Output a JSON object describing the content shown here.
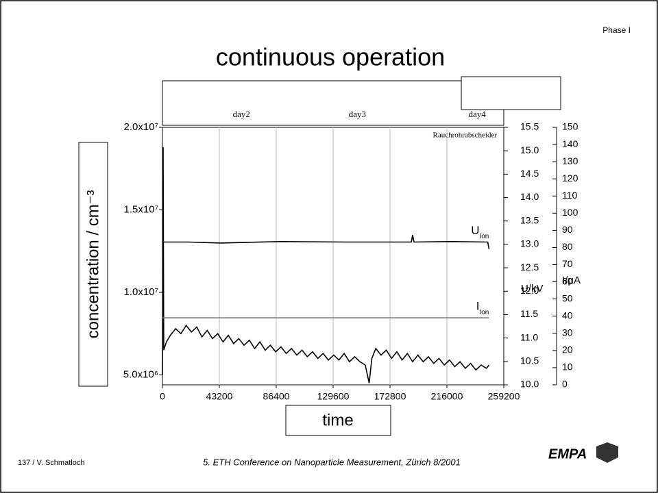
{
  "header": {
    "phase": "Phase I"
  },
  "footer": {
    "author": "137 / V. Schmatloch",
    "conference": "5. ETH Conference on Nanoparticle Measurement, Zürich 8/2001",
    "logo": "EMPA"
  },
  "chart_data": {
    "type": "line",
    "title": "continuous operation",
    "xlabel": "time",
    "ylabel": "concentration / cm⁻³",
    "y2label": "U/kV",
    "y3label": "I/µA",
    "xlim": [
      0,
      259200
    ],
    "xticks": [
      0,
      43200,
      86400,
      129600,
      172800,
      216000,
      259200
    ],
    "grid": true,
    "ylim": [
      4400000,
      20000000
    ],
    "yticks": [
      {
        "value": 5000000,
        "label": "5.0x10⁶"
      },
      {
        "value": 10000000,
        "label": "1.0x10⁷"
      },
      {
        "value": 15000000,
        "label": "1.5x10⁷"
      },
      {
        "value": 20000000,
        "label": "2.0x10⁷"
      }
    ],
    "y2lim": [
      10,
      15.5
    ],
    "y2ticks": [
      {
        "value": 10,
        "label": "10.0"
      },
      10.5,
      {
        "value": 11,
        "label": "11.0"
      },
      11.5,
      {
        "value": 12,
        "label": "12.0"
      },
      12.5,
      {
        "value": 13,
        "label": "13.0"
      },
      13.5,
      {
        "value": 14,
        "label": "14.0"
      },
      14.5,
      {
        "value": 15,
        "label": "15.0"
      },
      15.5
    ],
    "y3lim": [
      0,
      150
    ],
    "y3ticks": [
      0,
      10,
      20,
      30,
      40,
      50,
      60,
      70,
      80,
      90,
      100,
      110,
      120,
      130,
      140,
      150
    ],
    "annotations": [
      {
        "text": "day2",
        "x": 60000
      },
      {
        "text": "day3",
        "x": 148000
      },
      {
        "text": "day4",
        "x": 239000
      },
      {
        "text": "Rauchrohrabscheider",
        "x": 254000,
        "y": 19500000
      }
    ],
    "series": [
      {
        "name": "concentration",
        "color": "#000000",
        "x": [
          0,
          500,
          1000,
          3000,
          6000,
          10000,
          14000,
          18000,
          22000,
          26000,
          30000,
          34000,
          38000,
          42000,
          46000,
          50000,
          54000,
          58000,
          62000,
          66000,
          70000,
          74000,
          78000,
          82000,
          86000,
          90000,
          94000,
          98000,
          102000,
          106000,
          110000,
          114000,
          118000,
          122000,
          126000,
          130000,
          134000,
          138000,
          142000,
          146000,
          150000,
          154000,
          157000,
          159000,
          162000,
          166000,
          170000,
          174000,
          178000,
          182000,
          186000,
          190000,
          194000,
          198000,
          202000,
          206000,
          210000,
          214000,
          218000,
          222000,
          226000,
          230000,
          234000,
          238000,
          242000,
          246000,
          248000
        ],
        "values": [
          5000000,
          18800000,
          6500000,
          7000000,
          7400000,
          7800000,
          7500000,
          8000000,
          7600000,
          7900000,
          7300000,
          7700000,
          7200000,
          7500000,
          7000000,
          7400000,
          6900000,
          7200000,
          6800000,
          7100000,
          6600000,
          7000000,
          6500000,
          6800000,
          6400000,
          6700000,
          6300000,
          6600000,
          6200000,
          6500000,
          6100000,
          6400000,
          6000000,
          6300000,
          5900000,
          6200000,
          5900000,
          6300000,
          5800000,
          6100000,
          5800000,
          5600000,
          4500000,
          6000000,
          6600000,
          6200000,
          6500000,
          6000000,
          6400000,
          5900000,
          6300000,
          5800000,
          6200000,
          5800000,
          6100000,
          5700000,
          6000000,
          5600000,
          5900000,
          5500000,
          5800000,
          5400000,
          5700000,
          5300000,
          5600000,
          5400000,
          5600000
        ]
      },
      {
        "name": "U",
        "subscript": "Ion",
        "axis": "y2",
        "color": "#000000",
        "x": [
          1000,
          20000,
          44000,
          90000,
          140000,
          189000,
          190000,
          191000,
          220000,
          247000,
          248000
        ],
        "values": [
          13.05,
          13.05,
          13.03,
          13.06,
          13.05,
          13.05,
          13.2,
          13.05,
          13.06,
          13.05,
          12.9
        ]
      },
      {
        "name": "I",
        "subscript": "Ion",
        "axis": "y3",
        "color": "#777777",
        "x": [
          0,
          60000,
          120000,
          180000,
          248000
        ],
        "values": [
          39,
          39,
          39,
          39,
          39
        ]
      }
    ]
  }
}
